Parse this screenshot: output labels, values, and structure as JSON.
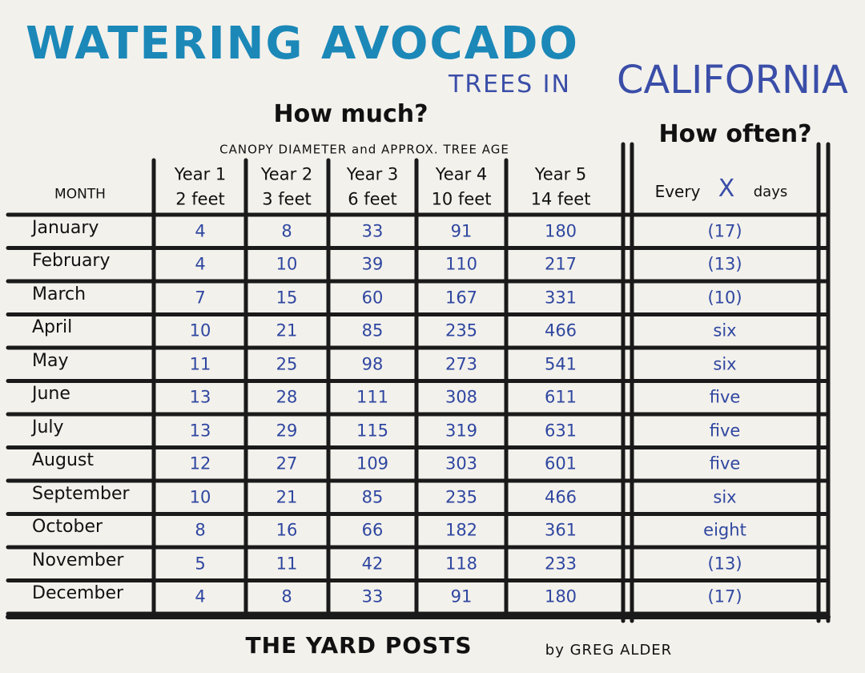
{
  "title": {
    "line1": "WATERING AVOCADO",
    "line2_small": "TREES IN",
    "line2_large": "CALIFORNIA"
  },
  "sections": {
    "how_much": "How much?",
    "how_often": "How often?",
    "subheader": "CANOPY DIAMETER and APPROX. TREE AGE"
  },
  "table": {
    "header": {
      "month": "MONTH",
      "years": [
        [
          "Year 1",
          "2 feet"
        ],
        [
          "Year 2",
          "3 feet"
        ],
        [
          "Year 3",
          "6 feet"
        ],
        [
          "Year 4",
          "10 feet"
        ],
        [
          "Year 5",
          "14 feet"
        ]
      ],
      "frequency": [
        "Every",
        "X",
        "days"
      ]
    },
    "rows": [
      [
        "January",
        4,
        8,
        33,
        91,
        180,
        "(17)"
      ],
      [
        "February",
        4,
        10,
        39,
        110,
        217,
        "(13)"
      ],
      [
        "March",
        7,
        15,
        60,
        167,
        331,
        "(10)"
      ],
      [
        "April",
        10,
        21,
        85,
        235,
        466,
        "six"
      ],
      [
        "May",
        11,
        25,
        98,
        273,
        541,
        "six"
      ],
      [
        "June",
        13,
        28,
        111,
        308,
        611,
        "five"
      ],
      [
        "July",
        13,
        29,
        115,
        319,
        631,
        "five"
      ],
      [
        "August",
        12,
        27,
        109,
        303,
        601,
        "five"
      ],
      [
        "September",
        10,
        21,
        85,
        235,
        466,
        "six"
      ],
      [
        "October",
        8,
        16,
        66,
        182,
        361,
        "eight"
      ],
      [
        "November",
        5,
        11,
        42,
        118,
        233,
        "(13)"
      ],
      [
        "December",
        4,
        8,
        33,
        91,
        180,
        "(17)"
      ]
    ]
  },
  "footer": {
    "brand": "THE YARD POSTS",
    "byline": "by GREG ALDER"
  }
}
